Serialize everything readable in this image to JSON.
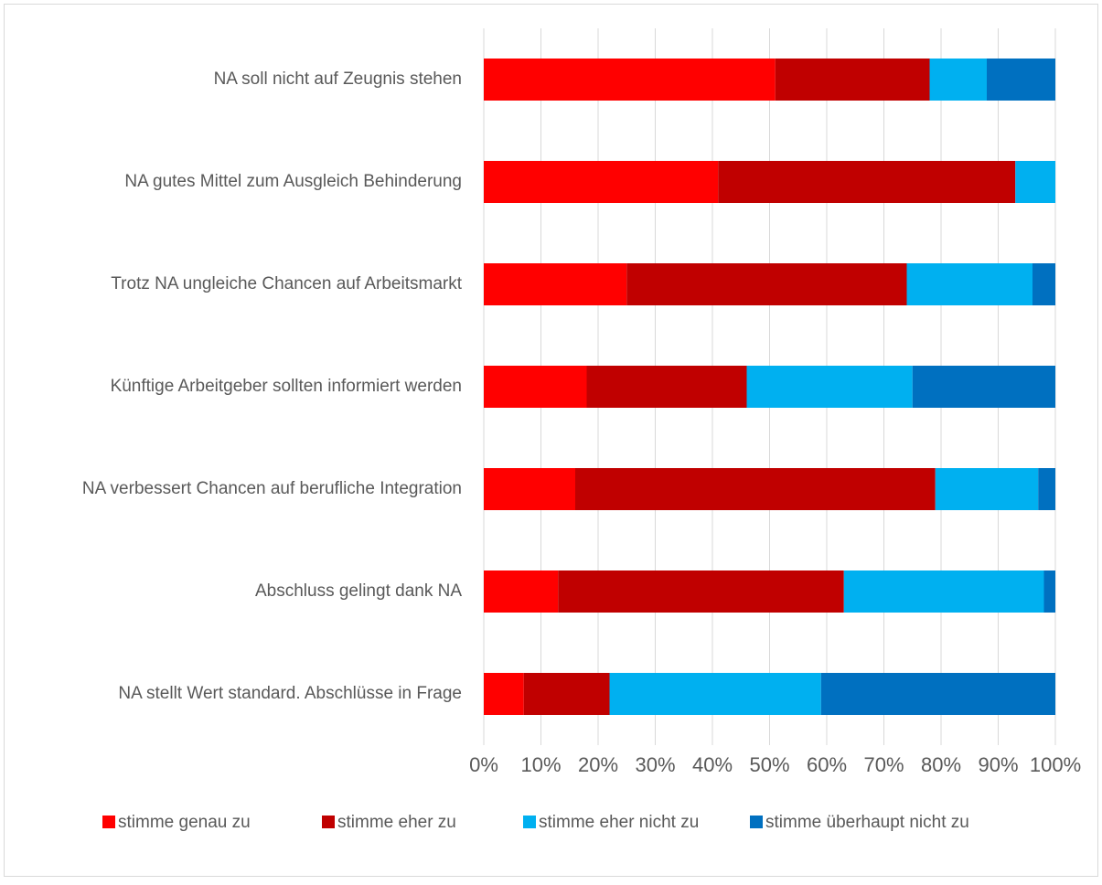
{
  "chart_data": {
    "type": "stacked_barh",
    "categories": [
      "NA soll nicht auf Zeugnis stehen",
      "NA gutes Mittel zum Ausgleich Behinderung",
      "Trotz NA ungleiche Chancen auf Arbeitsmarkt",
      "Künftige Arbeitgeber sollten informiert werden",
      "NA verbessert Chancen auf berufliche Integration",
      "Abschluss gelingt dank NA",
      "NA stellt Wert standard. Abschlüsse in Frage"
    ],
    "series": [
      {
        "name": "stimme genau zu",
        "color": "#ff0000",
        "values": [
          51,
          41,
          25,
          18,
          16,
          13,
          7
        ]
      },
      {
        "name": "stimme eher zu",
        "color": "#c00000",
        "values": [
          27,
          52,
          49,
          28,
          63,
          50,
          15
        ]
      },
      {
        "name": "stimme eher nicht zu",
        "color": "#00b0f0",
        "values": [
          10,
          7,
          22,
          29,
          18,
          35,
          37
        ]
      },
      {
        "name": "stimme überhaupt nicht zu",
        "color": "#0070c0",
        "values": [
          12,
          0,
          4,
          25,
          3,
          2,
          41
        ]
      }
    ],
    "xlim": [
      0,
      100
    ],
    "xticks": [
      {
        "value": 0,
        "label": "0%"
      },
      {
        "value": 10,
        "label": "10%"
      },
      {
        "value": 20,
        "label": "20%"
      },
      {
        "value": 30,
        "label": "30%"
      },
      {
        "value": 40,
        "label": "40%"
      },
      {
        "value": 50,
        "label": "50%"
      },
      {
        "value": 60,
        "label": "60%"
      },
      {
        "value": 70,
        "label": "70%"
      },
      {
        "value": 80,
        "label": "80%"
      },
      {
        "value": 90,
        "label": "90%"
      },
      {
        "value": 100,
        "label": "100%"
      }
    ],
    "grid": true,
    "legend": "bottom"
  }
}
